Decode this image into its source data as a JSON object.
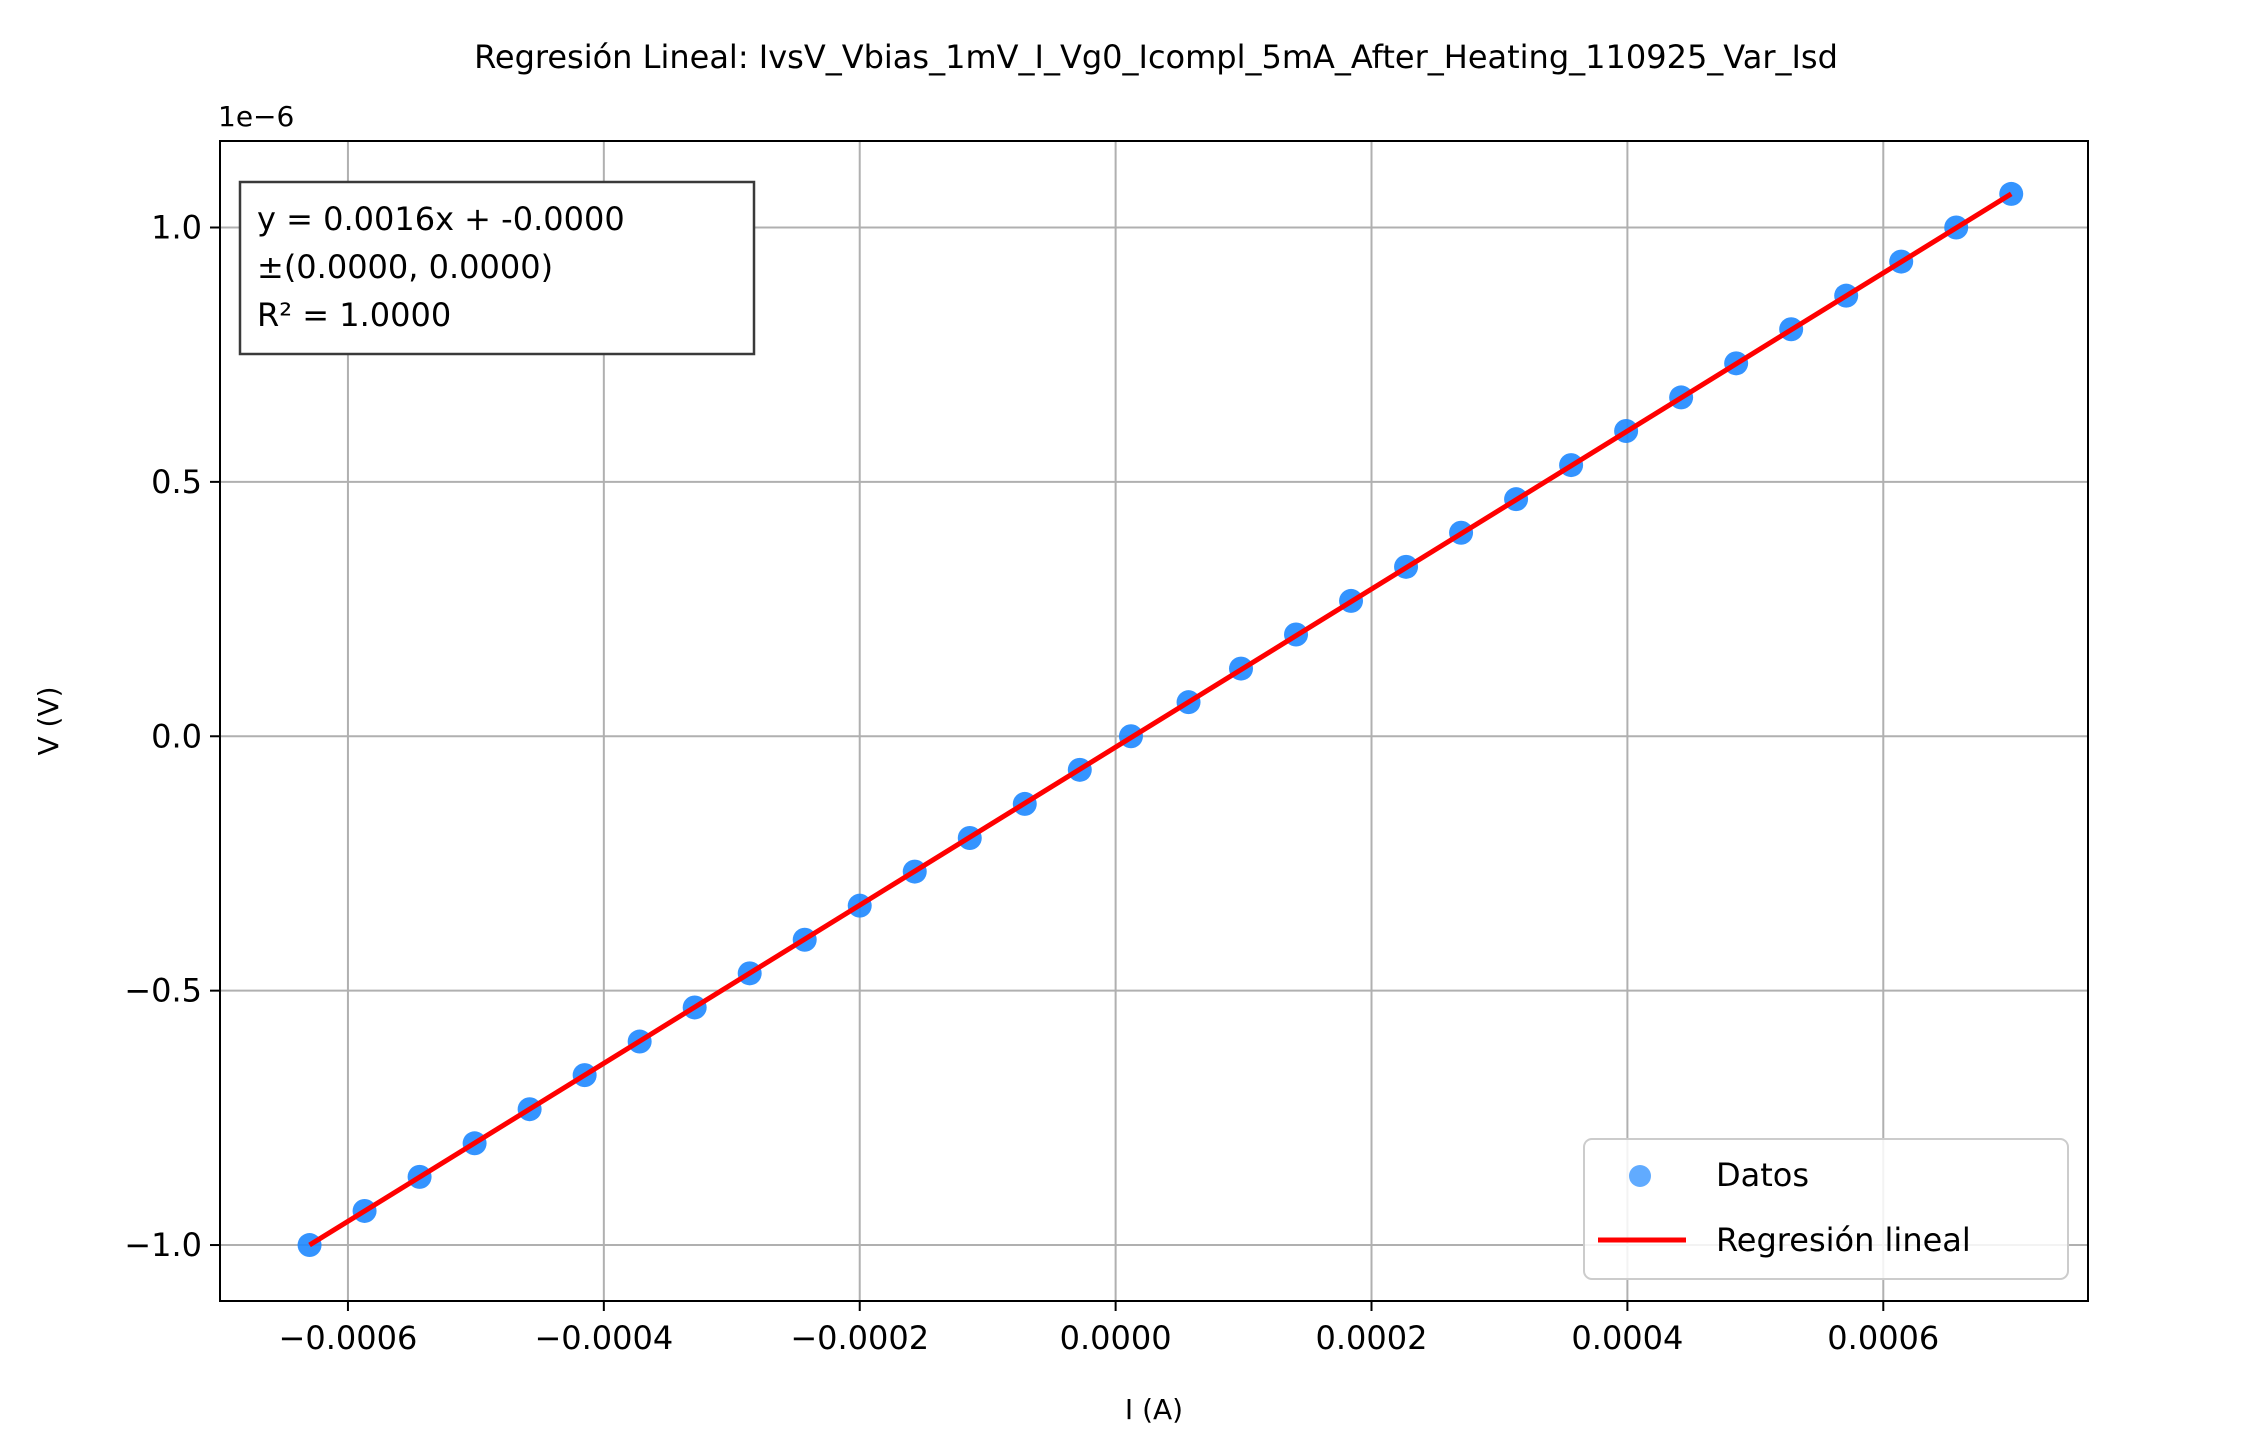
{
  "chart_data": {
    "type": "scatter",
    "title": "Regresión Lineal: IvsV_Vbias_1mV_I_Vg0_Icompl_5mA_After_Heating_110925_Var_Isd",
    "xlabel": "I (A)",
    "ylabel": "V (V)",
    "y_offset_label": "1e−6",
    "xlim": [
      -0.0007,
      0.00076
    ],
    "ylim": [
      -1.11,
      1.17
    ],
    "y_scale_factor": 1e-06,
    "grid": true,
    "x_ticks": [
      -0.0006,
      -0.0004,
      -0.0002,
      0.0,
      0.0002,
      0.0004,
      0.0006
    ],
    "x_tick_labels": [
      "−0.0006",
      "−0.0004",
      "−0.0002",
      "0.0000",
      "0.0002",
      "0.0004",
      "0.0006"
    ],
    "y_ticks": [
      -1.0,
      -0.5,
      0.0,
      0.5,
      1.0
    ],
    "y_tick_labels": [
      "−1.0",
      "−0.5",
      "0.0",
      "0.5",
      "1.0"
    ],
    "series": [
      {
        "name": "Datos",
        "kind": "scatter",
        "color": "#1e88ff",
        "x": [
          -0.00063,
          -0.000587,
          -0.000544,
          -0.000501,
          -0.000458,
          -0.000415,
          -0.000372,
          -0.000329,
          -0.000286,
          -0.000243,
          -0.0002,
          -0.000157,
          -0.000114,
          -7.1e-05,
          -2.8e-05,
          1.2e-05,
          5.7e-05,
          9.8e-05,
          0.000141,
          0.000184,
          0.000227,
          0.00027,
          0.000313,
          0.000356,
          0.000399,
          0.000442,
          0.000485,
          0.000528,
          0.000571,
          0.000614,
          0.000657,
          0.0007
        ],
        "y": [
          -1.0,
          -0.933,
          -0.866,
          -0.8,
          -0.733,
          -0.666,
          -0.6,
          -0.533,
          -0.466,
          -0.4,
          -0.333,
          -0.266,
          -0.2,
          -0.133,
          -0.066,
          0.0,
          0.067,
          0.133,
          0.2,
          0.266,
          0.333,
          0.4,
          0.466,
          0.533,
          0.6,
          0.666,
          0.733,
          0.8,
          0.866,
          0.933,
          1.0,
          1.066
        ]
      },
      {
        "name": "Regresión lineal",
        "kind": "line",
        "color": "#ff0000",
        "x": [
          -0.00063,
          0.0007
        ],
        "y": [
          -1.0,
          1.066
        ]
      }
    ],
    "annotation": {
      "lines": [
        "y = 0.0016x + -0.0000",
        "±(0.0000, 0.0000)",
        "R² = 1.0000"
      ],
      "color": "#ff0000",
      "placement": "top-left"
    },
    "legend": {
      "placement": "lower-right",
      "entries": [
        "Datos",
        "Regresión lineal"
      ]
    }
  }
}
